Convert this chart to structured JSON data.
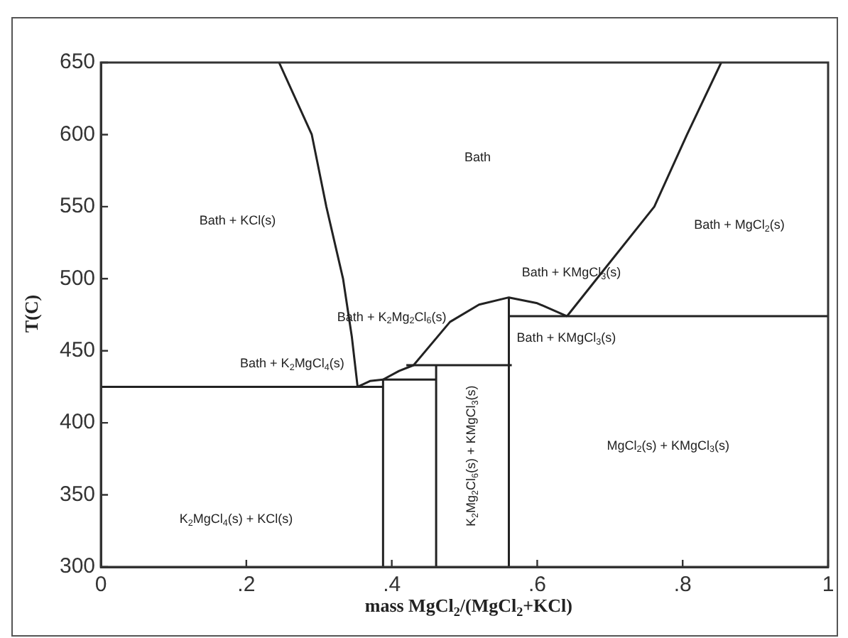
{
  "chart_data": {
    "type": "line",
    "xlabel": "mass MgCl$_{2}$/(MgCl$_{2}$+KCl)",
    "ylabel": "T(C)",
    "xlim": [
      0,
      1
    ],
    "ylim": [
      300,
      650
    ],
    "xticks": [
      0,
      {
        "value": 0.2,
        "label": ".2"
      },
      {
        "value": 0.4,
        "label": ".4"
      },
      {
        "value": 0.6,
        "label": ".6"
      },
      {
        "value": 0.8,
        "label": ".8"
      },
      1
    ],
    "yticks": [
      300,
      350,
      400,
      450,
      500,
      550,
      600,
      650
    ],
    "grid": false,
    "legend": false,
    "marker": "none",
    "line_style": "solid",
    "series": [
      {
        "color": "#222222",
        "x": [
          0.245,
          0.29,
          0.31,
          0.333,
          0.345,
          0.353
        ],
        "values": [
          650,
          600,
          550,
          500,
          460,
          425
        ]
      },
      {
        "color": "#222222",
        "x": [
          0,
          0.388
        ],
        "values": [
          425,
          425
        ]
      },
      {
        "color": "#222222",
        "x": [
          0.353,
          0.37,
          0.388,
          0.461
        ],
        "values": [
          425,
          429,
          430,
          430
        ]
      },
      {
        "color": "#222222",
        "x": [
          0.388,
          0.388
        ],
        "values": [
          300,
          430
        ]
      },
      {
        "color": "#222222",
        "x": [
          0.461,
          0.461
        ],
        "values": [
          300,
          440
        ]
      },
      {
        "color": "#222222",
        "x": [
          0.42,
          0.565
        ],
        "values": [
          440,
          440
        ]
      },
      {
        "color": "#222222",
        "x": [
          0.388,
          0.41,
          0.43,
          0.48,
          0.52,
          0.561,
          0.6,
          0.641
        ],
        "values": [
          430,
          436,
          440,
          470,
          482,
          487,
          483,
          474
        ]
      },
      {
        "color": "#222222",
        "x": [
          0.561,
          0.561
        ],
        "values": [
          300,
          487
        ]
      },
      {
        "color": "#222222",
        "x": [
          0.561,
          1
        ],
        "values": [
          474,
          474
        ]
      },
      {
        "color": "#222222",
        "x": [
          0.641,
          0.682,
          0.761,
          0.806,
          0.853
        ],
        "values": [
          474,
          500,
          550,
          600,
          650
        ]
      }
    ],
    "annotations": [
      "Bath + KCl(s)",
      "Bath",
      "Bath + MgCl$_{2}$(s)",
      "Bath + KMgCl$_{3}$(s)",
      "Bath + K$_{2}$Mg$_{2}$Cl$_{6}$(s)",
      "Bath + KMgCl$_{3}$(s)",
      "Bath + K$_{2}$MgCl$_{4}$(s)",
      "K$_{2}$MgCl$_{4}$(s) + KCl(s)",
      "K$_{2}$Mg$_{2}$Cl$_{6}$(s) + KMgCl$_{3}$(s)",
      "MgCl$_{2}$(s) + KMgCl$_{3}$(s)"
    ]
  }
}
